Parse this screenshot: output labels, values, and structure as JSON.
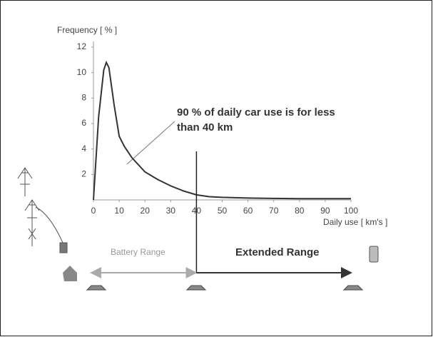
{
  "chart_data": {
    "type": "line",
    "y_label": "Frequency [ % ]",
    "x_label": "Daily use [ km's ]",
    "x": [
      0,
      2,
      4,
      5,
      6,
      8,
      10,
      12,
      15,
      20,
      25,
      30,
      35,
      40,
      45,
      50,
      60,
      70,
      80,
      90,
      100
    ],
    "values": [
      0,
      6.5,
      10.2,
      10.8,
      10.4,
      7.5,
      5.0,
      4.2,
      3.3,
      2.2,
      1.6,
      1.1,
      0.7,
      0.4,
      0.25,
      0.2,
      0.15,
      0.12,
      0.1,
      0.1,
      0.1
    ],
    "color": "#333333",
    "xlim": [
      0,
      100
    ],
    "xticks": [
      0,
      10,
      20,
      30,
      40,
      50,
      60,
      70,
      80,
      90,
      100
    ],
    "ylim": [
      0,
      12
    ],
    "yticks": [
      2,
      4,
      6,
      8,
      10,
      12
    ],
    "threshold": 40,
    "annotation": [
      "90 % of daily car use is for less",
      "than 40 km"
    ],
    "range_labels": [
      "Battery Range",
      "Extended Range"
    ]
  }
}
